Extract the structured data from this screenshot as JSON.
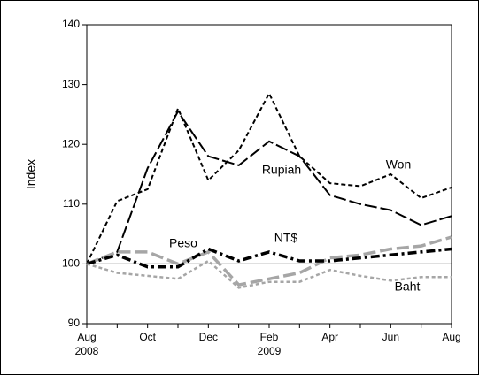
{
  "chart_data": {
    "type": "line",
    "y_label": "Index",
    "categories": [
      "Aug",
      null,
      "Oct",
      null,
      "Dec",
      null,
      "Feb",
      null,
      "Apr",
      null,
      "Jun",
      null,
      "Aug"
    ],
    "year_labels": [
      "2008",
      null,
      null,
      null,
      null,
      null,
      "2009",
      null,
      null,
      null,
      null,
      null,
      null
    ],
    "ylim": [
      90,
      140
    ],
    "yticks": [
      90,
      100,
      110,
      120,
      130,
      140
    ],
    "reference_line": 100,
    "series": [
      {
        "name": "Won",
        "color": "#000000",
        "style": "short-dash",
        "values": [
          100,
          110.5,
          112.5,
          126,
          114,
          119,
          128.5,
          118,
          113.5,
          113,
          115,
          111,
          112.8
        ]
      },
      {
        "name": "Rupiah",
        "color": "#000000",
        "style": "long-dash",
        "values": [
          100,
          102,
          116,
          125.5,
          118,
          116.5,
          120.5,
          118,
          111.5,
          110,
          109,
          106.5,
          108
        ]
      },
      {
        "name": "Peso",
        "color": "#a6a6a6",
        "style": "thick-dash",
        "values": [
          100,
          102,
          102,
          100,
          102,
          96.5,
          97.5,
          98.5,
          101,
          101.5,
          102.5,
          103,
          104.5
        ]
      },
      {
        "name": "NT$",
        "color": "#000000",
        "style": "dash-dot",
        "values": [
          100,
          101.5,
          99.5,
          99.5,
          102.5,
          100.5,
          102,
          100.5,
          100.5,
          101,
          101.5,
          102,
          102.5
        ]
      },
      {
        "name": "Baht",
        "color": "#a6a6a6",
        "style": "dot",
        "values": [
          100,
          98.5,
          98,
          97.5,
          100.5,
          96,
          97,
          97,
          99,
          98,
          97.2,
          97.8,
          97.8
        ]
      }
    ]
  }
}
